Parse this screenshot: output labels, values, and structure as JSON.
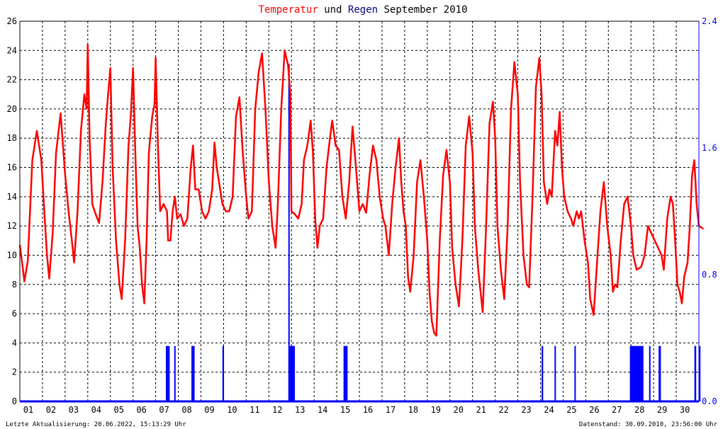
{
  "title": {
    "part1": "Temperatur",
    "part2": " und ",
    "part3": "Regen",
    "part4": " September 2010"
  },
  "footer": {
    "left": "Letzte Aktualisierung: 20.06.2022, 15:13:29 Uhr",
    "right": "Datenstand: 30.09.2010, 23:56:00 Uhr"
  },
  "colors": {
    "temperature": "#ff0000",
    "rain": "#0000ff",
    "title_mid": "#000000",
    "title_regen": "#000080",
    "grid": "#000000",
    "axis_left": "#000000",
    "axis_right": "#0000ff"
  },
  "chart_data": {
    "type": "line",
    "grid": true,
    "x_range": [
      1,
      31
    ],
    "x_ticks": [
      "01",
      "02",
      "03",
      "04",
      "05",
      "06",
      "07",
      "08",
      "09",
      "10",
      "11",
      "12",
      "13",
      "14",
      "15",
      "16",
      "17",
      "18",
      "19",
      "20",
      "21",
      "22",
      "23",
      "24",
      "25",
      "26",
      "27",
      "28",
      "29",
      "30"
    ],
    "y_left": {
      "range": [
        0,
        26
      ],
      "ticks": [
        "0",
        "2",
        "4",
        "6",
        "8",
        "10",
        "12",
        "14",
        "16",
        "18",
        "20",
        "22",
        "24",
        "26"
      ]
    },
    "y_right": {
      "range": [
        0.0,
        2.4
      ],
      "ticks": [
        "0.0",
        "0.8",
        "1.6",
        "2.4"
      ]
    },
    "series": [
      {
        "name": "Temperatur",
        "axis": "left",
        "points": [
          [
            1.0,
            10.7
          ],
          [
            1.1,
            9.5
          ],
          [
            1.2,
            8.2
          ],
          [
            1.35,
            9.6
          ],
          [
            1.55,
            16.5
          ],
          [
            1.75,
            18.5
          ],
          [
            1.95,
            16.5
          ],
          [
            2.1,
            12.5
          ],
          [
            2.2,
            10.0
          ],
          [
            2.3,
            8.4
          ],
          [
            2.45,
            11.5
          ],
          [
            2.6,
            17.0
          ],
          [
            2.8,
            19.7
          ],
          [
            3.0,
            15.5
          ],
          [
            3.15,
            13.0
          ],
          [
            3.3,
            11.0
          ],
          [
            3.4,
            9.5
          ],
          [
            3.55,
            13.0
          ],
          [
            3.7,
            18.5
          ],
          [
            3.85,
            21.0
          ],
          [
            3.95,
            20.0
          ],
          [
            4.0,
            24.4
          ],
          [
            4.08,
            18.0
          ],
          [
            4.2,
            13.5
          ],
          [
            4.35,
            12.8
          ],
          [
            4.5,
            12.2
          ],
          [
            4.65,
            15.0
          ],
          [
            4.8,
            19.0
          ],
          [
            4.9,
            21.0
          ],
          [
            5.0,
            22.8
          ],
          [
            5.1,
            16.0
          ],
          [
            5.25,
            11.0
          ],
          [
            5.4,
            8.0
          ],
          [
            5.5,
            7.0
          ],
          [
            5.65,
            11.0
          ],
          [
            5.8,
            17.5
          ],
          [
            5.9,
            19.5
          ],
          [
            6.0,
            22.8
          ],
          [
            6.1,
            17.0
          ],
          [
            6.2,
            12.0
          ],
          [
            6.3,
            10.5
          ],
          [
            6.4,
            8.0
          ],
          [
            6.5,
            6.7
          ],
          [
            6.6,
            11.0
          ],
          [
            6.7,
            17.0
          ],
          [
            6.85,
            19.5
          ],
          [
            6.95,
            20.3
          ],
          [
            7.0,
            23.5
          ],
          [
            7.1,
            17.5
          ],
          [
            7.2,
            13.0
          ],
          [
            7.35,
            13.5
          ],
          [
            7.5,
            13.0
          ],
          [
            7.55,
            11.0
          ],
          [
            7.65,
            11.0
          ],
          [
            7.75,
            13.0
          ],
          [
            7.85,
            14.0
          ],
          [
            7.95,
            12.5
          ],
          [
            8.1,
            12.8
          ],
          [
            8.25,
            12.0
          ],
          [
            8.4,
            12.5
          ],
          [
            8.55,
            16.0
          ],
          [
            8.65,
            17.5
          ],
          [
            8.75,
            14.5
          ],
          [
            8.9,
            14.5
          ],
          [
            9.05,
            13.0
          ],
          [
            9.2,
            12.5
          ],
          [
            9.35,
            13.0
          ],
          [
            9.5,
            14.5
          ],
          [
            9.6,
            17.7
          ],
          [
            9.7,
            16.0
          ],
          [
            9.8,
            15.0
          ],
          [
            9.95,
            13.5
          ],
          [
            10.1,
            13.0
          ],
          [
            10.25,
            13.0
          ],
          [
            10.4,
            14.0
          ],
          [
            10.55,
            19.5
          ],
          [
            10.7,
            20.8
          ],
          [
            10.85,
            17.0
          ],
          [
            11.0,
            14.0
          ],
          [
            11.1,
            12.5
          ],
          [
            11.25,
            13.0
          ],
          [
            11.4,
            20.0
          ],
          [
            11.55,
            22.5
          ],
          [
            11.7,
            23.8
          ],
          [
            11.85,
            20.0
          ],
          [
            12.0,
            15.0
          ],
          [
            12.15,
            12.0
          ],
          [
            12.3,
            10.5
          ],
          [
            12.4,
            13.5
          ],
          [
            12.55,
            20.0
          ],
          [
            12.7,
            24.0
          ],
          [
            12.85,
            23.0
          ],
          [
            12.95,
            21.0
          ],
          [
            13.0,
            13.0
          ],
          [
            13.15,
            12.8
          ],
          [
            13.3,
            12.5
          ],
          [
            13.45,
            13.5
          ],
          [
            13.55,
            16.5
          ],
          [
            13.7,
            17.5
          ],
          [
            13.85,
            19.2
          ],
          [
            13.95,
            17.0
          ],
          [
            14.05,
            12.5
          ],
          [
            14.15,
            10.5
          ],
          [
            14.25,
            12.0
          ],
          [
            14.4,
            12.5
          ],
          [
            14.55,
            16.0
          ],
          [
            14.7,
            18.0
          ],
          [
            14.8,
            19.2
          ],
          [
            14.95,
            17.5
          ],
          [
            15.1,
            17.2
          ],
          [
            15.25,
            14.0
          ],
          [
            15.4,
            12.5
          ],
          [
            15.55,
            15.0
          ],
          [
            15.7,
            18.8
          ],
          [
            15.85,
            16.0
          ],
          [
            16.0,
            13.0
          ],
          [
            16.15,
            13.5
          ],
          [
            16.3,
            12.9
          ],
          [
            16.45,
            15.5
          ],
          [
            16.6,
            17.5
          ],
          [
            16.75,
            16.5
          ],
          [
            16.9,
            14.0
          ],
          [
            17.05,
            12.5
          ],
          [
            17.15,
            12.0
          ],
          [
            17.3,
            10.0
          ],
          [
            17.45,
            13.5
          ],
          [
            17.6,
            16.0
          ],
          [
            17.75,
            18.0
          ],
          [
            17.85,
            15.0
          ],
          [
            17.95,
            13.0
          ],
          [
            18.05,
            12.0
          ],
          [
            18.15,
            8.5
          ],
          [
            18.25,
            7.5
          ],
          [
            18.4,
            10.0
          ],
          [
            18.55,
            15.0
          ],
          [
            18.7,
            16.5
          ],
          [
            18.85,
            14.0
          ],
          [
            19.0,
            11.0
          ],
          [
            19.1,
            7.5
          ],
          [
            19.2,
            5.5
          ],
          [
            19.3,
            4.7
          ],
          [
            19.4,
            4.5
          ],
          [
            19.55,
            11.0
          ],
          [
            19.7,
            15.5
          ],
          [
            19.85,
            17.2
          ],
          [
            20.0,
            15.0
          ],
          [
            20.1,
            10.5
          ],
          [
            20.25,
            8.0
          ],
          [
            20.4,
            6.5
          ],
          [
            20.55,
            11.0
          ],
          [
            20.7,
            17.5
          ],
          [
            20.85,
            19.5
          ],
          [
            21.0,
            17.0
          ],
          [
            21.1,
            12.0
          ],
          [
            21.25,
            9.0
          ],
          [
            21.45,
            6.1
          ],
          [
            21.6,
            12.0
          ],
          [
            21.75,
            19.0
          ],
          [
            21.9,
            20.5
          ],
          [
            22.0,
            18.0
          ],
          [
            22.1,
            12.0
          ],
          [
            22.25,
            9.0
          ],
          [
            22.4,
            7.0
          ],
          [
            22.55,
            12.0
          ],
          [
            22.7,
            20.0
          ],
          [
            22.85,
            23.2
          ],
          [
            23.0,
            21.0
          ],
          [
            23.1,
            15.0
          ],
          [
            23.25,
            10.0
          ],
          [
            23.4,
            8.0
          ],
          [
            23.5,
            7.8
          ],
          [
            23.65,
            14.0
          ],
          [
            23.8,
            21.5
          ],
          [
            23.95,
            23.5
          ],
          [
            24.05,
            21.0
          ],
          [
            24.15,
            15.0
          ],
          [
            24.3,
            13.5
          ],
          [
            24.4,
            14.5
          ],
          [
            24.5,
            14.0
          ],
          [
            24.65,
            18.5
          ],
          [
            24.75,
            17.5
          ],
          [
            24.85,
            19.8
          ],
          [
            24.95,
            16.0
          ],
          [
            25.05,
            14.0
          ],
          [
            25.2,
            13.0
          ],
          [
            25.35,
            12.5
          ],
          [
            25.45,
            12.0
          ],
          [
            25.6,
            13.0
          ],
          [
            25.7,
            12.5
          ],
          [
            25.8,
            13.0
          ],
          [
            25.95,
            11.0
          ],
          [
            26.1,
            9.5
          ],
          [
            26.2,
            7.0
          ],
          [
            26.35,
            5.9
          ],
          [
            26.5,
            9.5
          ],
          [
            26.65,
            13.0
          ],
          [
            26.8,
            15.0
          ],
          [
            26.95,
            12.0
          ],
          [
            27.1,
            10.0
          ],
          [
            27.2,
            7.5
          ],
          [
            27.3,
            8.0
          ],
          [
            27.4,
            7.8
          ],
          [
            27.55,
            11.0
          ],
          [
            27.7,
            13.5
          ],
          [
            27.85,
            14.0
          ],
          [
            28.0,
            12.0
          ],
          [
            28.1,
            10.0
          ],
          [
            28.25,
            9.0
          ],
          [
            28.45,
            9.2
          ],
          [
            28.6,
            10.0
          ],
          [
            28.75,
            12.0
          ],
          [
            28.9,
            11.5
          ],
          [
            29.05,
            11.0
          ],
          [
            29.2,
            10.5
          ],
          [
            29.35,
            10.0
          ],
          [
            29.45,
            9.0
          ],
          [
            29.6,
            12.5
          ],
          [
            29.75,
            14.0
          ],
          [
            29.85,
            13.5
          ],
          [
            29.95,
            11.0
          ],
          [
            30.05,
            8.0
          ],
          [
            30.15,
            7.5
          ],
          [
            30.25,
            6.7
          ],
          [
            30.35,
            8.5
          ],
          [
            30.5,
            9.5
          ],
          [
            30.6,
            12.0
          ],
          [
            30.7,
            15.5
          ],
          [
            30.8,
            16.5
          ],
          [
            30.9,
            13.5
          ],
          [
            31.0,
            12.0
          ],
          [
            31.2,
            11.8
          ]
        ]
      },
      {
        "name": "Regen",
        "axis": "right",
        "style": "bars",
        "bars": [
          [
            7.45,
            7.62,
            0.35
          ],
          [
            7.82,
            7.88,
            0.35
          ],
          [
            8.58,
            8.72,
            0.35
          ],
          [
            9.95,
            10.02,
            0.35
          ],
          [
            12.86,
            12.9,
            2.13
          ],
          [
            12.92,
            13.15,
            0.35
          ],
          [
            15.3,
            15.48,
            0.35
          ],
          [
            24.05,
            24.12,
            0.35
          ],
          [
            24.62,
            24.68,
            0.35
          ],
          [
            25.5,
            25.56,
            0.35
          ],
          [
            27.95,
            28.55,
            0.35
          ],
          [
            28.8,
            28.86,
            0.35
          ],
          [
            29.22,
            29.32,
            0.35
          ],
          [
            30.8,
            30.88,
            0.35
          ],
          [
            31.0,
            31.07,
            0.35
          ]
        ]
      }
    ]
  }
}
